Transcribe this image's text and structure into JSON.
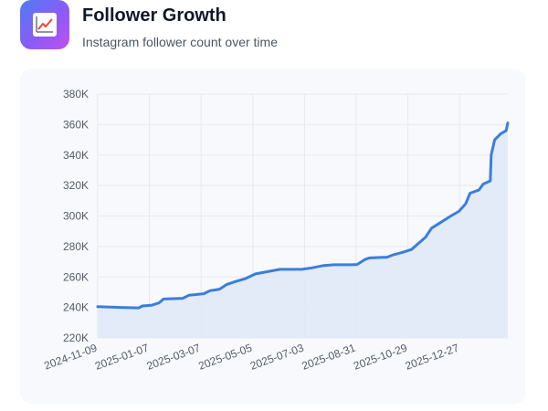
{
  "header": {
    "title": "Follower Growth",
    "subtitle": "Instagram follower count over time",
    "icon": "chart-line-icon"
  },
  "colors": {
    "line": "#3b7ddd",
    "area": "#dfe9f8",
    "grid": "#e6e9ef",
    "icon_gradient": [
      "#4f7cf6",
      "#c04ff0"
    ]
  },
  "chart_data": {
    "type": "area",
    "title": "",
    "xlabel": "",
    "ylabel": "",
    "ylim": [
      220000,
      380000
    ],
    "yticks": [
      220000,
      240000,
      260000,
      280000,
      300000,
      320000,
      340000,
      360000,
      380000
    ],
    "ytick_labels": [
      "220K",
      "240K",
      "260K",
      "280K",
      "300K",
      "320K",
      "340K",
      "360K",
      "380K"
    ],
    "xlim": [
      "2024-11-09",
      "2026-02-20"
    ],
    "xticks": [
      "2024-11-09",
      "2025-01-07",
      "2025-03-07",
      "2025-05-05",
      "2025-07-03",
      "2025-08-31",
      "2025-10-29",
      "2025-12-27"
    ],
    "grid": true,
    "legend": "none",
    "series": [
      {
        "points": [
          [
            "2024-11-09",
            240500
          ],
          [
            "2024-12-05",
            240000
          ],
          [
            "2024-12-26",
            239700
          ],
          [
            "2024-12-30",
            241000
          ],
          [
            "2025-01-10",
            241500
          ],
          [
            "2025-01-18",
            243000
          ],
          [
            "2025-01-23",
            245500
          ],
          [
            "2025-02-14",
            246000
          ],
          [
            "2025-02-21",
            248000
          ],
          [
            "2025-03-10",
            249000
          ],
          [
            "2025-03-17",
            251000
          ],
          [
            "2025-03-28",
            252000
          ],
          [
            "2025-04-05",
            255000
          ],
          [
            "2025-04-15",
            257000
          ],
          [
            "2025-04-27",
            259000
          ],
          [
            "2025-05-08",
            262000
          ],
          [
            "2025-05-22",
            263500
          ],
          [
            "2025-06-05",
            265000
          ],
          [
            "2025-06-30",
            265000
          ],
          [
            "2025-07-12",
            266000
          ],
          [
            "2025-07-25",
            267500
          ],
          [
            "2025-08-05",
            268000
          ],
          [
            "2025-08-25",
            268000
          ],
          [
            "2025-09-01",
            268200
          ],
          [
            "2025-09-10",
            271500
          ],
          [
            "2025-09-15",
            272500
          ],
          [
            "2025-10-05",
            273000
          ],
          [
            "2025-10-12",
            274500
          ],
          [
            "2025-10-22",
            276000
          ],
          [
            "2025-11-02",
            278000
          ],
          [
            "2025-11-10",
            282000
          ],
          [
            "2025-11-18",
            286000
          ],
          [
            "2025-11-25",
            292000
          ],
          [
            "2025-12-06",
            296000
          ],
          [
            "2025-12-17",
            300000
          ],
          [
            "2025-12-26",
            303000
          ],
          [
            "2026-01-03",
            308000
          ],
          [
            "2026-01-08",
            315000
          ],
          [
            "2026-01-18",
            317000
          ],
          [
            "2026-01-23",
            321000
          ],
          [
            "2026-01-31",
            323000
          ],
          [
            "2026-02-01",
            340000
          ],
          [
            "2026-02-05",
            350000
          ],
          [
            "2026-02-12",
            354000
          ],
          [
            "2026-02-18",
            356000
          ],
          [
            "2026-02-20",
            361000
          ]
        ]
      }
    ]
  }
}
